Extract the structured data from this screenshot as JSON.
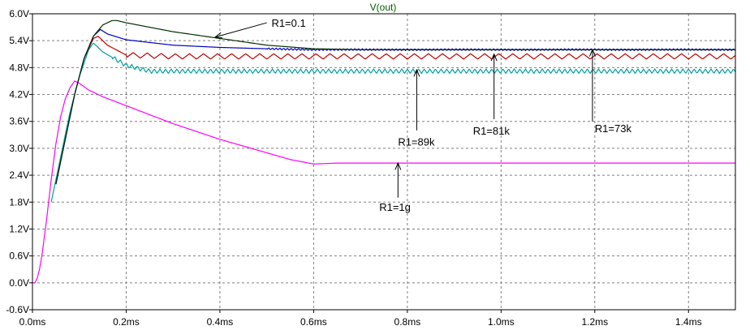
{
  "chart_data": {
    "type": "line",
    "title": "V(out)",
    "title_color": "#006000",
    "xlabel": "",
    "ylabel": "",
    "x_unit": "ms",
    "y_unit": "V",
    "xlim": [
      0,
      1.5
    ],
    "ylim": [
      -0.6,
      6.0
    ],
    "grid": true,
    "x_ticks": [
      0.0,
      0.2,
      0.4,
      0.6,
      0.8,
      1.0,
      1.2,
      1.4
    ],
    "x_tick_labels": [
      "0.0ms",
      "0.2ms",
      "0.4ms",
      "0.6ms",
      "0.8ms",
      "1.0ms",
      "1.2ms",
      "1.4ms"
    ],
    "y_ticks": [
      6.0,
      5.4,
      4.8,
      4.2,
      3.6,
      3.0,
      2.4,
      1.8,
      1.2,
      0.6,
      0.0,
      -0.6
    ],
    "y_tick_labels": [
      "6.0V",
      "5.4V",
      "4.8V",
      "4.2V",
      "3.6V",
      "3.0V",
      "2.4V",
      "1.8V",
      "1.2V",
      "0.6V",
      "0.0V",
      "-0.6V"
    ],
    "series": [
      {
        "color": "#ff00ff",
        "ripple": 0,
        "x": [
          0,
          0.005,
          0.01,
          0.015,
          0.02,
          0.03,
          0.04,
          0.05,
          0.06,
          0.07,
          0.08,
          0.09,
          0.1,
          0.12,
          0.15,
          0.2,
          0.3,
          0.4,
          0.5,
          0.55,
          0.6,
          0.65,
          0.7,
          0.8,
          1.0,
          1.2,
          1.5
        ],
        "y": [
          0.0,
          0.0,
          0.1,
          0.3,
          0.6,
          1.4,
          2.3,
          3.1,
          3.7,
          4.1,
          4.35,
          4.5,
          4.45,
          4.3,
          4.15,
          3.95,
          3.55,
          3.2,
          2.9,
          2.75,
          2.65,
          2.67,
          2.67,
          2.67,
          2.67,
          2.67,
          2.67
        ]
      },
      {
        "color": "#00a0a0",
        "ripple": 0.05,
        "ripple_start": 0.17,
        "ripple_period": 0.012,
        "x": [
          0.04,
          0.06,
          0.08,
          0.1,
          0.12,
          0.13,
          0.15,
          0.2,
          0.25,
          0.3,
          0.5,
          1.0,
          1.5
        ],
        "y": [
          1.8,
          2.8,
          3.8,
          4.6,
          5.2,
          5.35,
          5.15,
          4.85,
          4.72,
          4.72,
          4.72,
          4.72,
          4.72
        ]
      },
      {
        "color": "#c00000",
        "ripple": 0.06,
        "ripple_start": 0.2,
        "ripple_period": 0.03,
        "x": [
          0.05,
          0.07,
          0.09,
          0.11,
          0.13,
          0.14,
          0.16,
          0.2,
          0.3,
          0.5,
          1.0,
          1.5
        ],
        "y": [
          2.2,
          3.2,
          4.2,
          5.0,
          5.45,
          5.5,
          5.3,
          5.08,
          5.05,
          5.05,
          5.05,
          5.05
        ]
      },
      {
        "color": "#0000c0",
        "ripple": 0.02,
        "ripple_start": 0.5,
        "ripple_period": 0.008,
        "x": [
          0.05,
          0.07,
          0.09,
          0.11,
          0.13,
          0.145,
          0.16,
          0.2,
          0.3,
          0.4,
          0.5,
          0.6,
          1.0,
          1.5
        ],
        "y": [
          2.2,
          3.2,
          4.2,
          5.0,
          5.5,
          5.65,
          5.55,
          5.42,
          5.3,
          5.25,
          5.22,
          5.2,
          5.2,
          5.2
        ]
      },
      {
        "color": "#003000",
        "ripple": 0,
        "x": [
          0.05,
          0.07,
          0.09,
          0.11,
          0.13,
          0.15,
          0.17,
          0.18,
          0.2,
          0.3,
          0.4,
          0.5,
          0.6,
          0.7,
          1.0,
          1.5
        ],
        "y": [
          2.2,
          3.2,
          4.2,
          5.0,
          5.5,
          5.75,
          5.85,
          5.85,
          5.8,
          5.6,
          5.45,
          5.3,
          5.22,
          5.2,
          5.2,
          5.2
        ]
      }
    ],
    "annotations": [
      {
        "text": "R1=0.1",
        "tip": [
          0.39,
          5.48
        ],
        "tail": [
          0.5,
          5.8
        ],
        "label_at": [
          0.51,
          5.8
        ]
      },
      {
        "text": "R1=89k",
        "tip": [
          0.82,
          4.75
        ],
        "tail": [
          0.82,
          3.4
        ],
        "label_at": [
          0.78,
          3.15
        ]
      },
      {
        "text": "R1=81k",
        "tip": [
          0.985,
          5.1
        ],
        "tail": [
          0.985,
          3.65
        ],
        "label_at": [
          0.94,
          3.4
        ]
      },
      {
        "text": "R1=73k",
        "tip": [
          1.195,
          5.2
        ],
        "tail": [
          1.195,
          3.6
        ],
        "label_at": [
          1.2,
          3.45
        ]
      },
      {
        "text": "R1=1g",
        "tip": [
          0.78,
          2.67
        ],
        "tail": [
          0.78,
          1.9
        ],
        "label_at": [
          0.74,
          1.7
        ]
      }
    ]
  }
}
